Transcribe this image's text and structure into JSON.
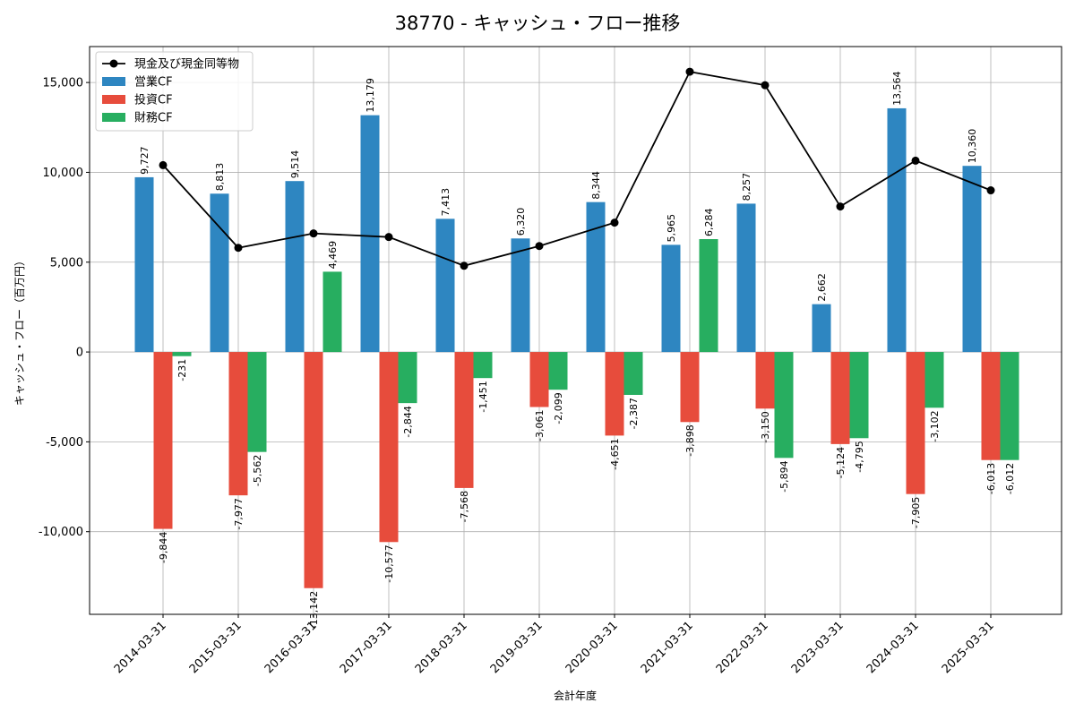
{
  "chart_data": {
    "type": "bar",
    "title": "38770 - キャッシュ・フロー推移",
    "xlabel": "会計年度",
    "ylabel": "キャッシュ・フロー（百万円）",
    "categories": [
      "2014-03-31",
      "2015-03-31",
      "2016-03-31",
      "2017-03-31",
      "2018-03-31",
      "2019-03-31",
      "2020-03-31",
      "2021-03-31",
      "2022-03-31",
      "2023-03-31",
      "2024-03-31",
      "2025-03-31"
    ],
    "ylim": [
      -14600,
      17000
    ],
    "yticks": [
      -10000,
      -5000,
      0,
      5000,
      10000,
      15000
    ],
    "ytick_labels": [
      "-10,000",
      "-5,000",
      "0",
      "5,000",
      "10,000",
      "15,000"
    ],
    "grid": true,
    "legend_position": "top-left",
    "series": [
      {
        "name": "営業CF",
        "kind": "bar",
        "color": "#2e86c1",
        "values": [
          9727,
          8813,
          9514,
          13179,
          7413,
          6320,
          8344,
          5965,
          8257,
          2662,
          13564,
          10360
        ],
        "labels": [
          "9,727",
          "8,813",
          "9,514",
          "13,179",
          "7,413",
          "6,320",
          "8,344",
          "5,965",
          "8,257",
          "2,662",
          "13,564",
          "10,360"
        ]
      },
      {
        "name": "投資CF",
        "kind": "bar",
        "color": "#e74c3c",
        "values": [
          -9844,
          -7977,
          -13142,
          -10577,
          -7568,
          -3061,
          -4651,
          -3898,
          -3150,
          -5124,
          -7905,
          -6013
        ],
        "labels": [
          "-9,844",
          "-7,977",
          "-13,142",
          "-10,577",
          "-7,568",
          "-3,061",
          "-4,651",
          "-3,898",
          "-3,150",
          "-5,124",
          "-7,905",
          "-6,013"
        ]
      },
      {
        "name": "財務CF",
        "kind": "bar",
        "color": "#27ae60",
        "values": [
          -231,
          -5562,
          4469,
          -2844,
          -1451,
          -2099,
          -2387,
          6284,
          -5894,
          -4795,
          -3102,
          -6012
        ],
        "labels": [
          "-231",
          "-5,562",
          "4,469",
          "-2,844",
          "-1,451",
          "-2,099",
          "-2,387",
          "6,284",
          "-5,894",
          "-4,795",
          "-3,102",
          "-6,012"
        ]
      },
      {
        "name": "現金及び現金同等物",
        "kind": "line",
        "color": "#000000",
        "values": [
          10400,
          5800,
          6600,
          6400,
          4800,
          5900,
          7200,
          15600,
          14850,
          8100,
          10650,
          9000
        ]
      }
    ]
  }
}
